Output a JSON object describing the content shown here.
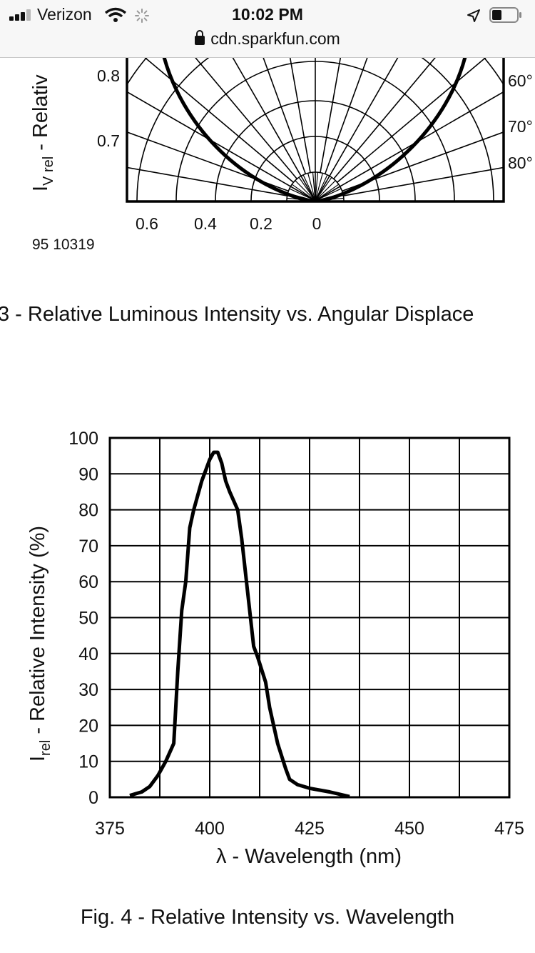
{
  "status_bar": {
    "carrier": "Verizon",
    "time": "10:02 PM",
    "url": "cdn.sparkfun.com",
    "icons": [
      "signal-icon",
      "wifi-icon",
      "loading-spinner-icon",
      "location-arrow-icon",
      "battery-icon"
    ]
  },
  "figure3": {
    "caption": "3 - Relative Luminous Intensity vs. Angular Displace",
    "code": "95 10319",
    "ylabel_main": "I",
    "ylabel_sub": "V rel",
    "ylabel_rest": " - Relativ",
    "y_ticks": [
      "0.8",
      "0.7"
    ],
    "x_ticks": [
      "0.6",
      "0.4",
      "0.2",
      "0"
    ],
    "angle_labels": [
      "60°",
      "70°",
      "80°"
    ]
  },
  "figure4": {
    "caption": "Fig. 4 - Relative Intensity vs. Wavelength"
  },
  "chart_data": {
    "type": "line",
    "xlabel": "λ - Wavelength (nm)",
    "ylabel_main": "I",
    "ylabel_sub": "rel",
    "ylabel_rest": " - Relative Intensity (%)",
    "xlim": [
      375,
      475
    ],
    "ylim": [
      0,
      100
    ],
    "x_ticks": [
      "375",
      "400",
      "425",
      "450",
      "475"
    ],
    "y_ticks": [
      "0",
      "10",
      "20",
      "30",
      "40",
      "50",
      "60",
      "70",
      "80",
      "90",
      "100"
    ],
    "grid": true,
    "series": [
      {
        "x": [
          380,
          383,
          385,
          387,
          389,
          391,
          392,
          393,
          394,
          395,
          396,
          398,
          400,
          401,
          402,
          403,
          404,
          405,
          407,
          408,
          409,
          410,
          411,
          412,
          414,
          415,
          417,
          419,
          420,
          422,
          425,
          430,
          435
        ],
        "y": [
          0.5,
          1.5,
          3,
          6,
          10,
          15,
          35,
          52,
          60,
          75,
          80,
          88,
          94,
          96,
          96,
          93,
          88,
          85,
          80,
          72,
          62,
          52,
          42,
          39,
          32,
          25,
          15,
          8,
          5,
          3.5,
          2.5,
          1.5,
          0.2
        ]
      }
    ]
  }
}
